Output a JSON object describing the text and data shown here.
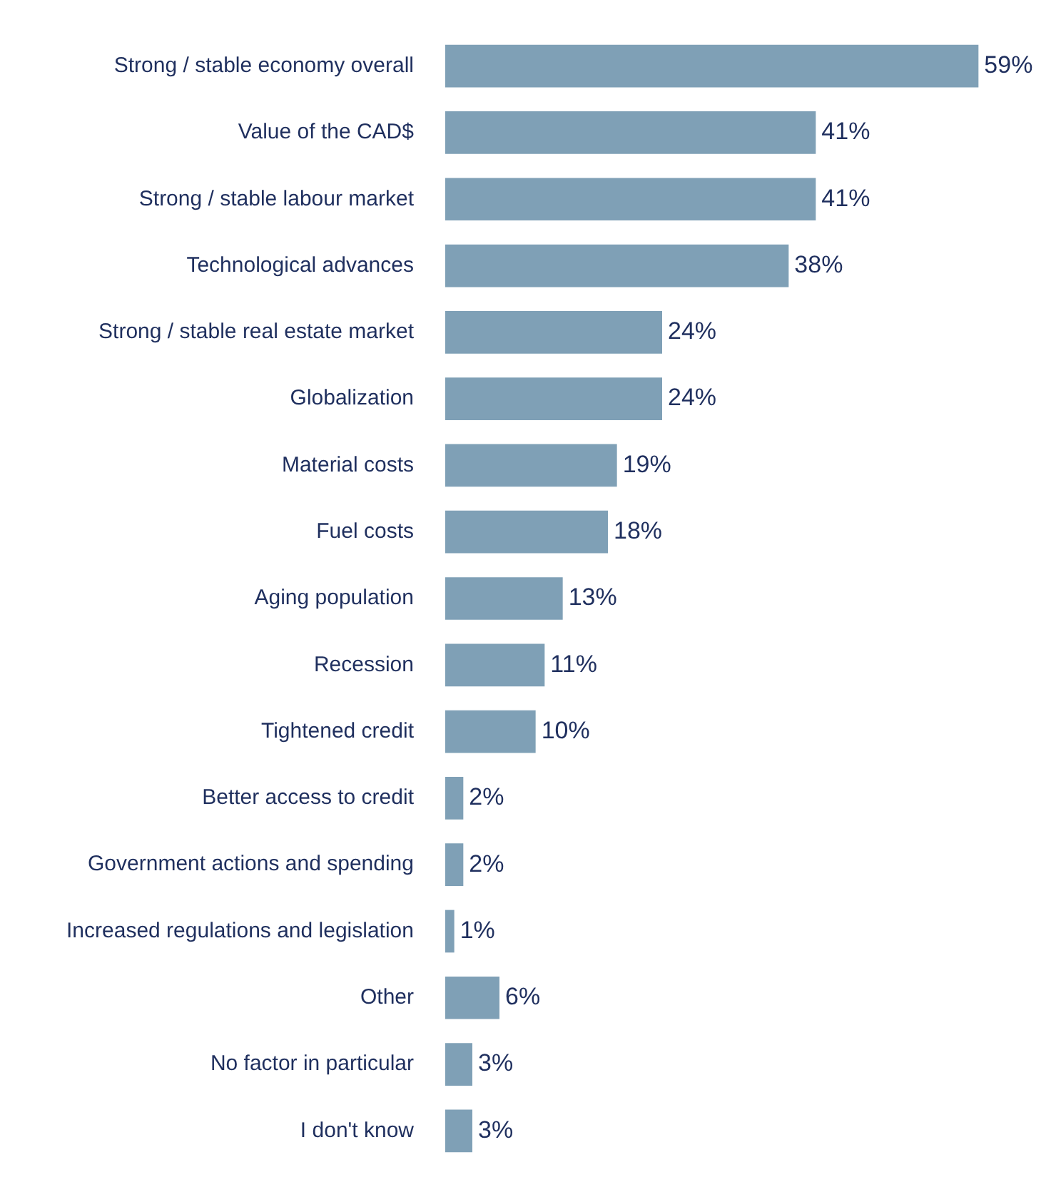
{
  "chart_data": {
    "type": "bar",
    "orientation": "horizontal",
    "tick_labels": "y",
    "categories": [
      "Strong / stable economy overall",
      "Value of the CAD$",
      "Strong / stable labour market",
      "Technological advances",
      "Strong / stable real estate market",
      "Globalization",
      "Material costs",
      "Fuel costs",
      "Aging population",
      "Recession",
      "Tightened credit",
      "Better access to credit",
      "Government actions and spending",
      "Increased regulations and legislation",
      "Other",
      "No factor in particular",
      "I don't know"
    ],
    "values": [
      59,
      41,
      41,
      38,
      24,
      24,
      19,
      18,
      13,
      11,
      10,
      2,
      2,
      1,
      6,
      3,
      3
    ],
    "value_labels": [
      "59%",
      "41%",
      "41%",
      "38%",
      "24%",
      "24%",
      "19%",
      "18%",
      "13%",
      "11%",
      "10%",
      "2%",
      "2%",
      "1%",
      "6%",
      "3%",
      "3%"
    ],
    "color": "#7fa0b6"
  }
}
